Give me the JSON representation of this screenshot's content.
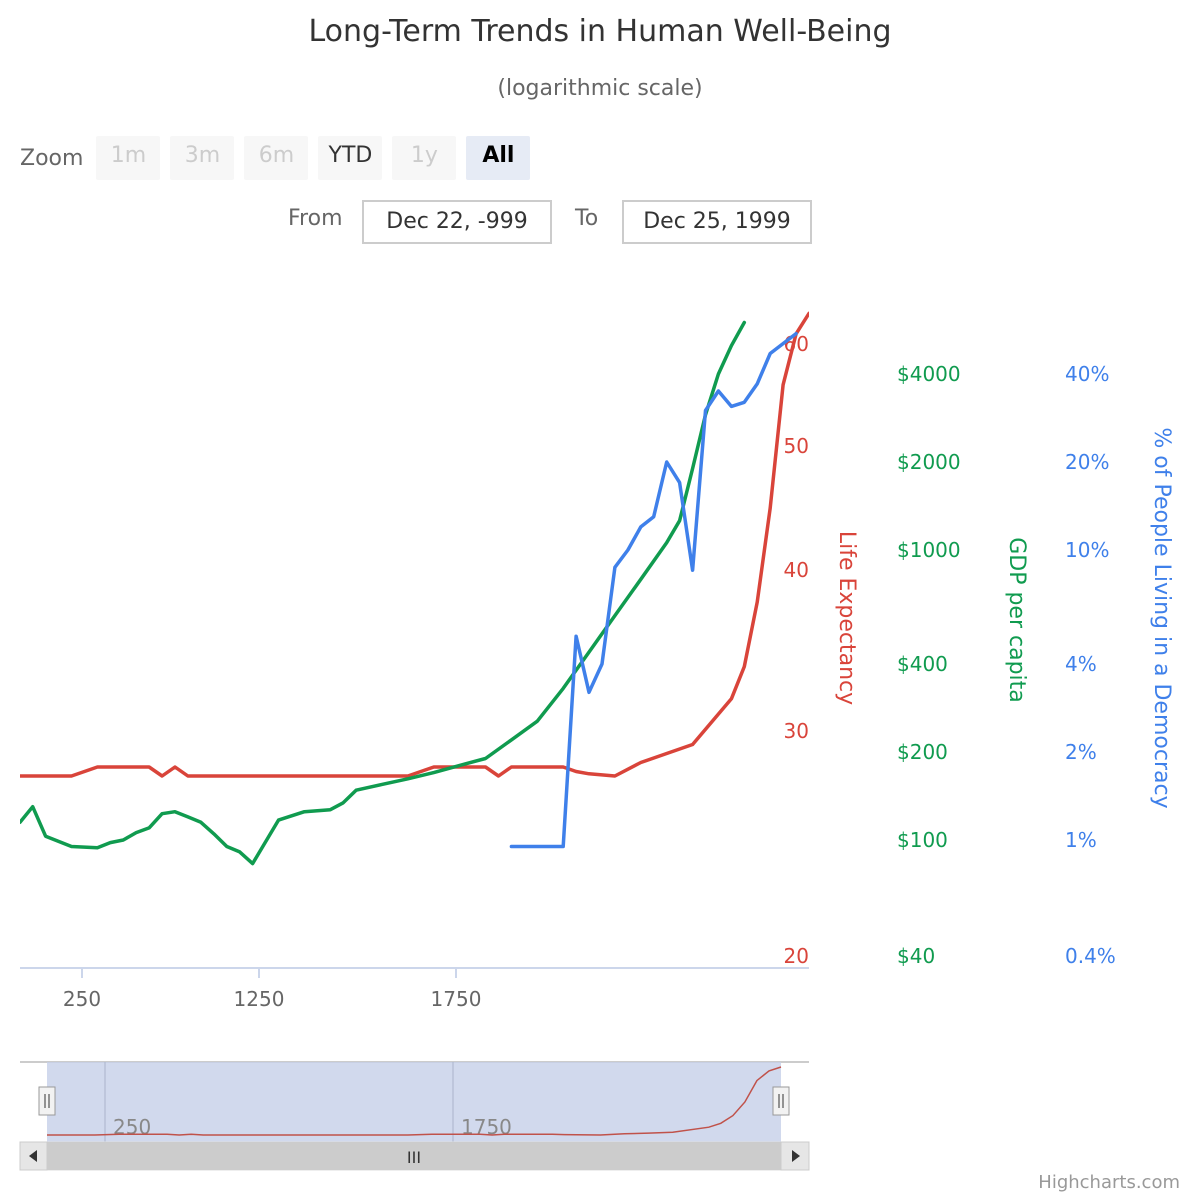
{
  "chart_data": {
    "type": "line",
    "title": "Long-Term Trends in Human Well-Being",
    "subtitle": "(logarithmic scale)",
    "xlabel": "",
    "x_ticks": [
      250,
      1250,
      1750
    ],
    "xlim": [
      -999,
      1999
    ],
    "y_axes": [
      {
        "id": "life",
        "label": "Life Expectancy",
        "color": "#d9443a",
        "scale": "linear",
        "range": [
          20,
          63
        ],
        "ticks": [
          {
            "v": 20,
            "t": "20"
          },
          {
            "v": 30,
            "t": "30"
          },
          {
            "v": 40,
            "t": "40"
          },
          {
            "v": 50,
            "t": "50"
          },
          {
            "v": 60,
            "t": "60"
          }
        ]
      },
      {
        "id": "gdp",
        "label": "GDP per capita",
        "color": "#109b4f",
        "scale": "log",
        "range": [
          40,
          6600
        ],
        "ticks": [
          {
            "v": 40,
            "t": "$40"
          },
          {
            "v": 100,
            "t": "$100"
          },
          {
            "v": 200,
            "t": "$200"
          },
          {
            "v": 400,
            "t": "$400"
          },
          {
            "v": 1000,
            "t": "$1000"
          },
          {
            "v": 2000,
            "t": "$2000"
          },
          {
            "v": 4000,
            "t": "$4000"
          }
        ]
      },
      {
        "id": "dem",
        "label": "% of People Living in a Democracy",
        "color": "#3f80ea",
        "scale": "log",
        "range": [
          0.4,
          66
        ],
        "ticks": [
          {
            "v": 0.4,
            "t": "0.4%"
          },
          {
            "v": 1,
            "t": "1%"
          },
          {
            "v": 2,
            "t": "2%"
          },
          {
            "v": 4,
            "t": "4%"
          },
          {
            "v": 10,
            "t": "10%"
          },
          {
            "v": 20,
            "t": "20%"
          },
          {
            "v": 40,
            "t": "40%"
          }
        ]
      }
    ],
    "series": [
      {
        "axis": "life",
        "color": "#d9443a",
        "points": [
          [
            -999,
            28
          ],
          [
            -800,
            28
          ],
          [
            -700,
            28.4
          ],
          [
            -600,
            28.4
          ],
          [
            -500,
            28.4
          ],
          [
            -450,
            28
          ],
          [
            -400,
            28.4
          ],
          [
            -350,
            28
          ],
          [
            -300,
            28
          ],
          [
            -200,
            28
          ],
          [
            -100,
            28
          ],
          [
            0,
            28
          ],
          [
            100,
            28
          ],
          [
            200,
            28
          ],
          [
            300,
            28
          ],
          [
            400,
            28
          ],
          [
            500,
            28
          ],
          [
            600,
            28.4
          ],
          [
            700,
            28.4
          ],
          [
            800,
            28.4
          ],
          [
            850,
            28
          ],
          [
            900,
            28.4
          ],
          [
            1000,
            28.4
          ],
          [
            1100,
            28.4
          ],
          [
            1150,
            28.2
          ],
          [
            1200,
            28.1
          ],
          [
            1300,
            28
          ],
          [
            1400,
            28.6
          ],
          [
            1500,
            29
          ],
          [
            1600,
            29.4
          ],
          [
            1750,
            32
          ],
          [
            1800,
            34
          ],
          [
            1850,
            38
          ],
          [
            1900,
            45
          ],
          [
            1950,
            56
          ],
          [
            2000,
            61
          ],
          [
            2050,
            63
          ]
        ]
      },
      {
        "axis": "gdp",
        "color": "#109b4f",
        "points": [
          [
            -999,
            115
          ],
          [
            -950,
            130
          ],
          [
            -900,
            103
          ],
          [
            -800,
            95
          ],
          [
            -700,
            94
          ],
          [
            -650,
            98
          ],
          [
            -600,
            100
          ],
          [
            -550,
            106
          ],
          [
            -500,
            110
          ],
          [
            -450,
            123
          ],
          [
            -400,
            125
          ],
          [
            -350,
            120
          ],
          [
            -300,
            115
          ],
          [
            -250,
            105
          ],
          [
            -200,
            95
          ],
          [
            -150,
            91
          ],
          [
            -100,
            83
          ],
          [
            0,
            117
          ],
          [
            100,
            125
          ],
          [
            200,
            127
          ],
          [
            250,
            134
          ],
          [
            300,
            148
          ],
          [
            400,
            155
          ],
          [
            500,
            162
          ],
          [
            600,
            170
          ],
          [
            700,
            180
          ],
          [
            800,
            190
          ],
          [
            900,
            220
          ],
          [
            1000,
            255
          ],
          [
            1100,
            330
          ],
          [
            1200,
            440
          ],
          [
            1300,
            590
          ],
          [
            1400,
            790
          ],
          [
            1500,
            1060
          ],
          [
            1550,
            1260
          ],
          [
            1600,
            1900
          ],
          [
            1650,
            2900
          ],
          [
            1700,
            4000
          ],
          [
            1750,
            5000
          ],
          [
            1800,
            6000
          ]
        ]
      },
      {
        "axis": "dem",
        "color": "#3f80ea",
        "points": [
          [
            900,
            0.95
          ],
          [
            1000,
            0.95
          ],
          [
            1100,
            0.95
          ],
          [
            1150,
            5
          ],
          [
            1200,
            3.2
          ],
          [
            1250,
            4
          ],
          [
            1300,
            8.7
          ],
          [
            1350,
            10
          ],
          [
            1400,
            12
          ],
          [
            1450,
            13
          ],
          [
            1500,
            20
          ],
          [
            1550,
            17
          ],
          [
            1600,
            8.5
          ],
          [
            1650,
            30
          ],
          [
            1700,
            35
          ],
          [
            1750,
            31
          ],
          [
            1800,
            32
          ],
          [
            1850,
            37
          ],
          [
            1900,
            47
          ],
          [
            2000,
            55
          ]
        ]
      }
    ],
    "grid": false,
    "legend": "none",
    "range_selector": {
      "zoom_label": "Zoom",
      "buttons": [
        {
          "label": "1m",
          "state": "disabled"
        },
        {
          "label": "3m",
          "state": "disabled"
        },
        {
          "label": "6m",
          "state": "disabled"
        },
        {
          "label": "YTD",
          "state": "enabled"
        },
        {
          "label": "1y",
          "state": "disabled"
        },
        {
          "label": "All",
          "state": "active"
        }
      ],
      "from_label": "From",
      "from_value": "Dec 22, -999",
      "to_label": "To",
      "to_value": "Dec 25, 1999"
    },
    "navigator": {
      "x_ticks": [
        250,
        1750
      ],
      "scrollbar_grip": "III",
      "handle_grip": "II"
    },
    "credits": "Highcharts.com"
  }
}
